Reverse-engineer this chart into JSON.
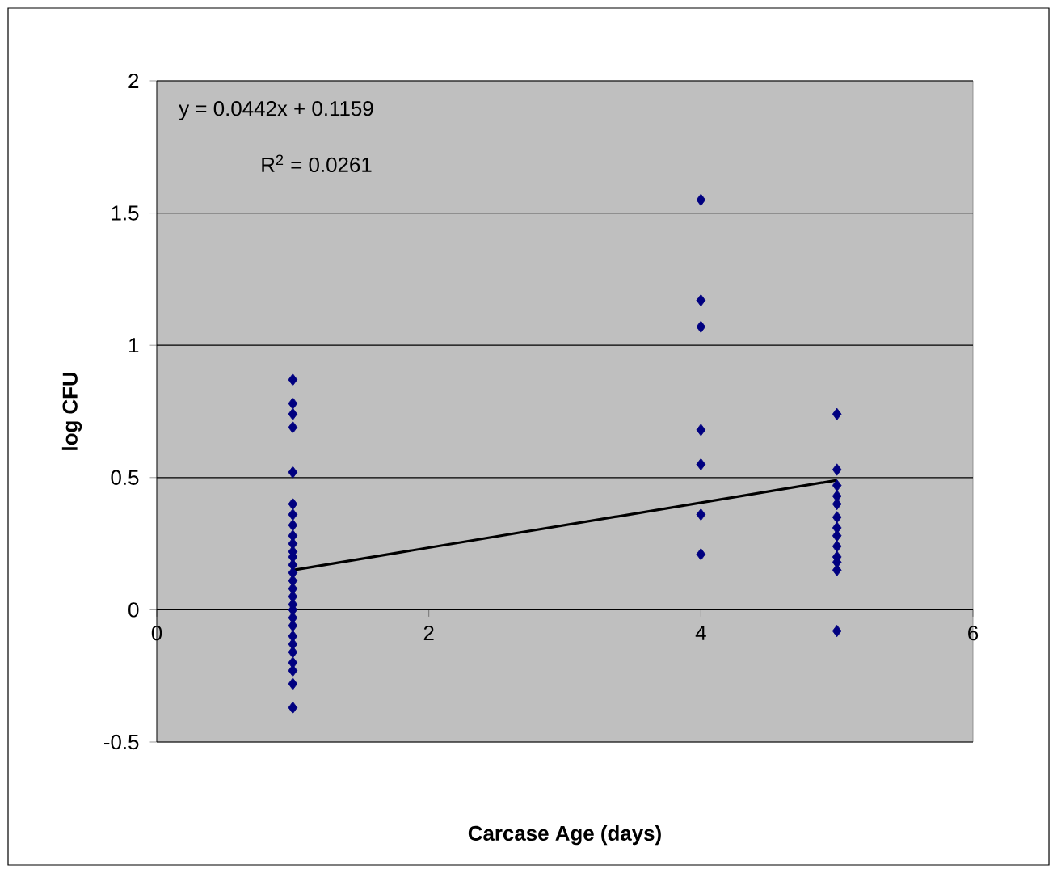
{
  "chart_data": {
    "type": "scatter",
    "xlabel": "Carcase Age (days)",
    "ylabel": "log CFU",
    "xlim": [
      0,
      6
    ],
    "xticks": [
      0,
      2,
      4,
      6
    ],
    "ylim": [
      -0.5,
      2
    ],
    "yticks": [
      -0.5,
      0,
      0.5,
      1,
      1.5,
      2
    ],
    "grid": "y",
    "marker": "diamond",
    "annotations": [
      "y = 0.0442x + 0.1159",
      "R$^{2}$ = 0.0261"
    ],
    "series": [
      {
        "color": "#000080",
        "x": [
          1,
          1,
          1,
          1,
          1,
          1,
          1,
          1,
          1,
          1,
          1,
          1,
          1,
          1,
          1,
          1,
          1,
          1,
          1,
          1,
          1,
          1,
          1,
          1,
          1,
          1,
          1,
          1,
          4,
          4,
          4,
          4,
          4,
          4,
          4,
          5,
          5,
          5,
          5,
          5,
          5,
          5,
          5,
          5,
          5,
          5,
          5,
          5
        ],
        "values": [
          0.87,
          0.78,
          0.74,
          0.69,
          0.52,
          0.4,
          0.36,
          0.32,
          0.28,
          0.25,
          0.22,
          0.2,
          0.17,
          0.14,
          0.11,
          0.08,
          0.05,
          0.02,
          0.0,
          -0.03,
          -0.06,
          -0.1,
          -0.13,
          -0.16,
          -0.2,
          -0.23,
          -0.28,
          -0.37,
          1.55,
          1.17,
          1.07,
          0.68,
          0.55,
          0.36,
          0.21,
          0.74,
          0.53,
          0.47,
          0.43,
          0.4,
          0.35,
          0.31,
          0.28,
          0.24,
          0.2,
          0.18,
          0.15,
          -0.08
        ]
      },
      {
        "type": "line",
        "color": "#000000",
        "marker": "none",
        "x": [
          1,
          5
        ],
        "values": [
          0.15,
          0.49
        ]
      }
    ]
  }
}
